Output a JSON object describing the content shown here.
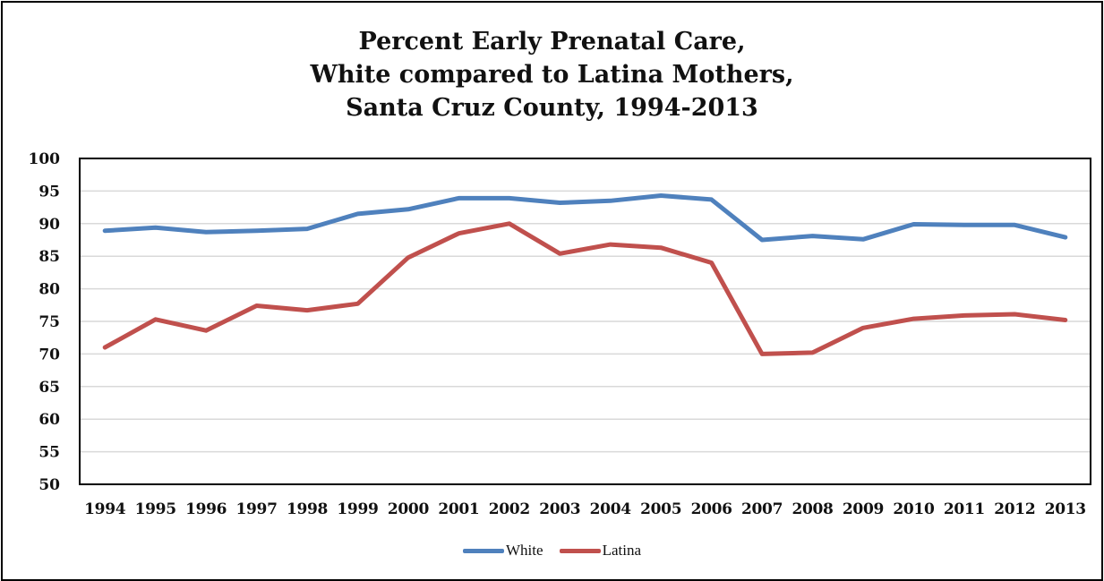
{
  "chart_data": {
    "type": "line",
    "title": [
      "Percent Early Prenatal Care,",
      "White compared to  Latina Mothers,",
      "Santa Cruz County, 1994-2013"
    ],
    "xlabel": "",
    "ylabel": "",
    "categories": [
      "1994",
      "1995",
      "1996",
      "1997",
      "1998",
      "1999",
      "2000",
      "2001",
      "2002",
      "2003",
      "2004",
      "2005",
      "2006",
      "2007",
      "2008",
      "2009",
      "2010",
      "2011",
      "2012",
      "2013"
    ],
    "ylim": [
      50,
      100
    ],
    "yticks": [
      50,
      55,
      60,
      65,
      70,
      75,
      80,
      85,
      90,
      95,
      100
    ],
    "grid": true,
    "legend_position": "bottom",
    "series": [
      {
        "name": "White",
        "color": "#4F81BD",
        "values": [
          88.9,
          89.4,
          88.7,
          88.9,
          89.2,
          91.5,
          92.2,
          93.9,
          93.9,
          93.2,
          93.5,
          94.3,
          93.7,
          87.5,
          88.1,
          87.6,
          89.9,
          89.8,
          89.8,
          87.9
        ]
      },
      {
        "name": "Latina",
        "color": "#C0504D",
        "values": [
          71.0,
          75.3,
          73.6,
          77.4,
          76.7,
          77.7,
          84.8,
          88.5,
          90.0,
          85.4,
          86.8,
          86.3,
          84.0,
          70.0,
          70.2,
          74.0,
          75.4,
          75.9,
          76.1,
          75.2
        ]
      }
    ]
  }
}
